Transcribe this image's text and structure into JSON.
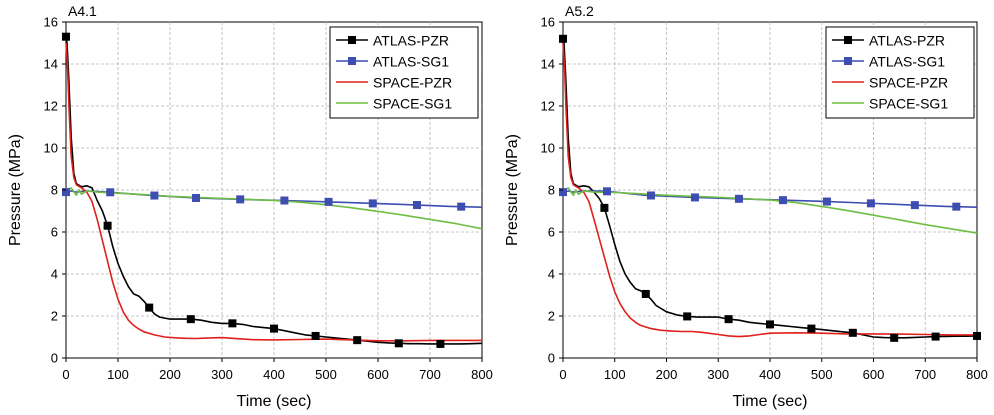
{
  "chart_data": [
    {
      "type": "line",
      "title": "A4.1",
      "xlabel": "Time (sec)",
      "ylabel": "Pressure (MPa)",
      "xlim": [
        0,
        800
      ],
      "ylim": [
        0,
        16
      ],
      "xticks": [
        0,
        100,
        200,
        300,
        400,
        500,
        600,
        700,
        800
      ],
      "yticks": [
        0,
        2,
        4,
        6,
        8,
        10,
        12,
        14,
        16
      ],
      "grid": true,
      "legend_position": "top-right",
      "series": [
        {
          "name": "ATLAS-PZR",
          "color": "#000000",
          "marker": "square",
          "x": [
            0,
            2,
            5,
            10,
            15,
            20,
            30,
            40,
            50,
            60,
            70,
            80,
            90,
            100,
            110,
            120,
            130,
            140,
            150,
            160,
            170,
            180,
            200,
            220,
            240,
            260,
            280,
            300,
            320,
            340,
            360,
            380,
            400,
            420,
            440,
            460,
            480,
            500,
            520,
            540,
            560,
            580,
            600,
            620,
            640,
            660,
            680,
            700,
            720,
            740,
            760,
            780,
            800
          ],
          "y": [
            15.3,
            15.0,
            13.5,
            10.5,
            8.8,
            8.3,
            8.15,
            8.2,
            8.1,
            7.5,
            7.0,
            6.3,
            5.3,
            4.5,
            3.9,
            3.4,
            3.05,
            2.95,
            2.7,
            2.4,
            2.1,
            1.95,
            1.85,
            1.85,
            1.85,
            1.8,
            1.7,
            1.65,
            1.65,
            1.6,
            1.5,
            1.45,
            1.4,
            1.3,
            1.2,
            1.1,
            1.05,
            1.0,
            0.95,
            0.9,
            0.85,
            0.8,
            0.75,
            0.72,
            0.7,
            0.68,
            0.68,
            0.67,
            0.67,
            0.67,
            0.67,
            0.68,
            0.7
          ],
          "marker_x": [
            0,
            80,
            160,
            240,
            320,
            400,
            480,
            560,
            640,
            720
          ]
        },
        {
          "name": "ATLAS-SG1",
          "color": "#3d4db0",
          "marker": "square",
          "x": [
            0,
            10,
            20,
            40,
            80,
            160,
            250,
            340,
            420,
            500,
            580,
            660,
            740,
            800
          ],
          "y": [
            7.9,
            7.95,
            7.9,
            7.95,
            7.9,
            7.75,
            7.62,
            7.55,
            7.5,
            7.44,
            7.37,
            7.3,
            7.22,
            7.18
          ],
          "marker_x": [
            0,
            85,
            170,
            250,
            335,
            420,
            505,
            590,
            675,
            760
          ]
        },
        {
          "name": "SPACE-PZR",
          "color": "#e0201b",
          "marker": "none",
          "x": [
            0,
            3,
            6,
            10,
            15,
            20,
            30,
            40,
            50,
            60,
            70,
            80,
            90,
            100,
            110,
            120,
            130,
            140,
            150,
            170,
            190,
            210,
            230,
            250,
            270,
            300,
            330,
            360,
            400,
            450,
            500,
            550,
            600,
            650,
            700,
            750,
            800
          ],
          "y": [
            15.0,
            13.8,
            11.8,
            9.6,
            8.6,
            8.25,
            8.1,
            7.9,
            7.45,
            6.6,
            5.6,
            4.6,
            3.6,
            2.8,
            2.2,
            1.8,
            1.55,
            1.38,
            1.25,
            1.1,
            1.0,
            0.96,
            0.94,
            0.93,
            0.95,
            0.97,
            0.92,
            0.87,
            0.86,
            0.88,
            0.9,
            0.86,
            0.82,
            0.82,
            0.84,
            0.84,
            0.84
          ]
        },
        {
          "name": "SPACE-SG1",
          "color": "#6fbe44",
          "marker": "none",
          "x": [
            0,
            10,
            20,
            25,
            30,
            40,
            60,
            100,
            150,
            200,
            300,
            400,
            450,
            500,
            550,
            600,
            650,
            700,
            750,
            800
          ],
          "y": [
            7.95,
            8.1,
            7.75,
            8.0,
            7.8,
            7.95,
            7.9,
            7.85,
            7.78,
            7.7,
            7.6,
            7.5,
            7.42,
            7.3,
            7.15,
            6.98,
            6.8,
            6.6,
            6.4,
            6.15
          ]
        }
      ]
    },
    {
      "type": "line",
      "title": "A5.2",
      "xlabel": "Time (sec)",
      "ylabel": "Pressure (MPa)",
      "xlim": [
        0,
        800
      ],
      "ylim": [
        0,
        16
      ],
      "xticks": [
        0,
        100,
        200,
        300,
        400,
        500,
        600,
        700,
        800
      ],
      "yticks": [
        0,
        2,
        4,
        6,
        8,
        10,
        12,
        14,
        16
      ],
      "grid": true,
      "legend_position": "top-right",
      "series": [
        {
          "name": "ATLAS-PZR",
          "color": "#000000",
          "marker": "square",
          "x": [
            0,
            2,
            5,
            10,
            15,
            20,
            30,
            40,
            50,
            60,
            70,
            80,
            90,
            100,
            110,
            120,
            130,
            140,
            150,
            160,
            170,
            180,
            200,
            220,
            240,
            260,
            280,
            300,
            320,
            340,
            360,
            380,
            400,
            420,
            440,
            460,
            480,
            500,
            520,
            540,
            560,
            580,
            600,
            620,
            640,
            660,
            680,
            700,
            720,
            740,
            760,
            780,
            800
          ],
          "y": [
            15.2,
            15.0,
            13.5,
            10.5,
            8.8,
            8.3,
            8.15,
            8.2,
            8.15,
            7.9,
            7.6,
            7.15,
            6.3,
            5.4,
            4.6,
            4.0,
            3.6,
            3.3,
            3.2,
            3.05,
            2.8,
            2.5,
            2.2,
            2.05,
            1.98,
            1.95,
            1.95,
            1.95,
            1.85,
            1.8,
            1.7,
            1.65,
            1.6,
            1.55,
            1.5,
            1.45,
            1.4,
            1.35,
            1.3,
            1.25,
            1.2,
            1.1,
            1.0,
            0.97,
            0.96,
            0.96,
            0.98,
            1.0,
            1.02,
            1.03,
            1.04,
            1.04,
            1.05
          ],
          "marker_x": [
            0,
            80,
            160,
            240,
            320,
            400,
            480,
            560,
            640,
            720,
            800
          ]
        },
        {
          "name": "ATLAS-SG1",
          "color": "#3d4db0",
          "marker": "square",
          "x": [
            0,
            10,
            20,
            40,
            80,
            160,
            250,
            340,
            420,
            500,
            580,
            660,
            740,
            800
          ],
          "y": [
            7.9,
            7.95,
            7.9,
            7.95,
            7.95,
            7.75,
            7.65,
            7.58,
            7.52,
            7.46,
            7.38,
            7.3,
            7.22,
            7.18
          ],
          "marker_x": [
            0,
            85,
            170,
            255,
            340,
            425,
            510,
            595,
            680,
            760
          ]
        },
        {
          "name": "SPACE-PZR",
          "color": "#e0201b",
          "marker": "none",
          "x": [
            0,
            3,
            6,
            10,
            15,
            20,
            30,
            40,
            50,
            60,
            70,
            80,
            90,
            100,
            110,
            120,
            130,
            140,
            150,
            170,
            190,
            210,
            230,
            250,
            270,
            300,
            320,
            340,
            360,
            380,
            400,
            450,
            500,
            550,
            600,
            650,
            700,
            750,
            800
          ],
          "y": [
            15.0,
            13.8,
            11.8,
            9.6,
            8.6,
            8.25,
            8.1,
            7.9,
            7.45,
            6.6,
            5.7,
            4.8,
            3.9,
            3.15,
            2.6,
            2.2,
            1.9,
            1.7,
            1.55,
            1.4,
            1.32,
            1.28,
            1.26,
            1.26,
            1.22,
            1.12,
            1.05,
            1.02,
            1.05,
            1.12,
            1.18,
            1.2,
            1.18,
            1.15,
            1.15,
            1.14,
            1.12,
            1.1,
            1.1
          ]
        },
        {
          "name": "SPACE-SG1",
          "color": "#6fbe44",
          "marker": "none",
          "x": [
            0,
            10,
            20,
            25,
            30,
            40,
            60,
            100,
            150,
            200,
            300,
            400,
            450,
            500,
            550,
            600,
            650,
            700,
            750,
            800
          ],
          "y": [
            7.95,
            8.1,
            7.75,
            8.0,
            7.8,
            7.95,
            7.9,
            7.88,
            7.82,
            7.75,
            7.65,
            7.52,
            7.4,
            7.22,
            7.02,
            6.8,
            6.58,
            6.35,
            6.15,
            5.95
          ]
        }
      ]
    }
  ]
}
